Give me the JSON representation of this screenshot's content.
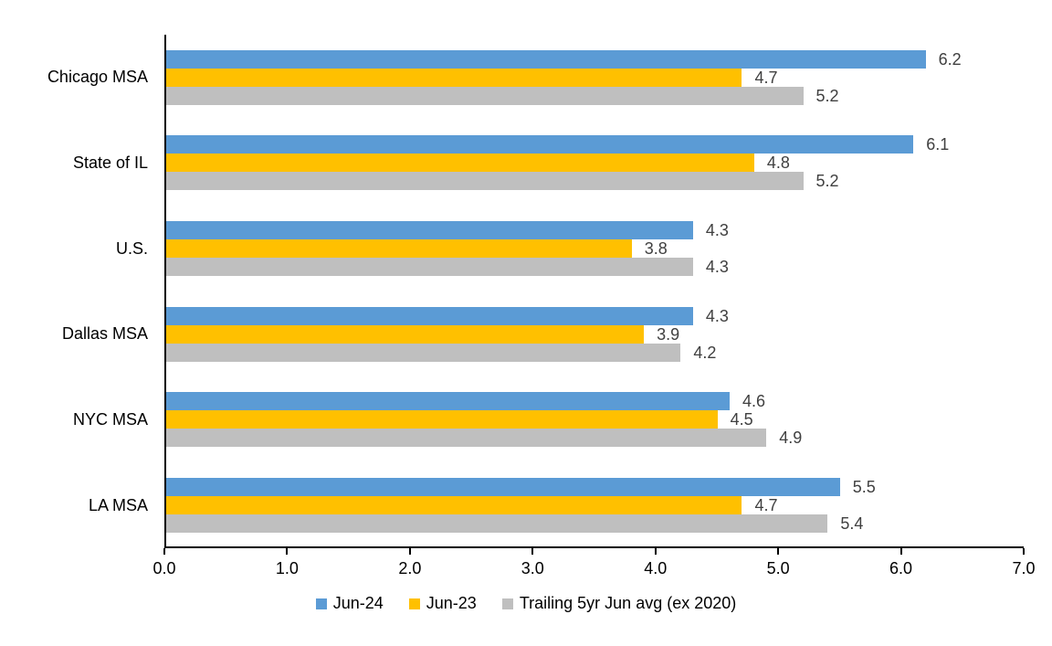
{
  "chart_data": {
    "type": "bar",
    "orientation": "horizontal",
    "title": "",
    "xlabel": "",
    "ylabel": "",
    "grid": false,
    "legend_position": "bottom",
    "data_labels": true,
    "categories": [
      "Chicago MSA",
      "State of IL",
      "U.S.",
      "Dallas MSA",
      "NYC MSA",
      "LA MSA"
    ],
    "series": [
      {
        "name": "Jun-24",
        "color": "#5B9BD5",
        "values": [
          6.2,
          6.1,
          4.3,
          4.3,
          4.6,
          5.5
        ]
      },
      {
        "name": "Jun-23",
        "color": "#FFC000",
        "values": [
          4.7,
          4.8,
          3.8,
          3.9,
          4.5,
          4.7
        ]
      },
      {
        "name": "Trailing 5yr Jun avg (ex 2020)",
        "color": "#BFBFBF",
        "values": [
          5.2,
          5.2,
          4.3,
          4.2,
          4.9,
          5.4
        ]
      }
    ],
    "xlim": [
      0,
      7
    ],
    "x_ticks": [
      "0.0",
      "1.0",
      "2.0",
      "3.0",
      "4.0",
      "5.0",
      "6.0",
      "7.0"
    ]
  },
  "colors": {
    "background": "#FFFFFF",
    "axis": "#000000",
    "data_label": "#404040",
    "tick_label": "#000000",
    "category_label": "#000000"
  }
}
